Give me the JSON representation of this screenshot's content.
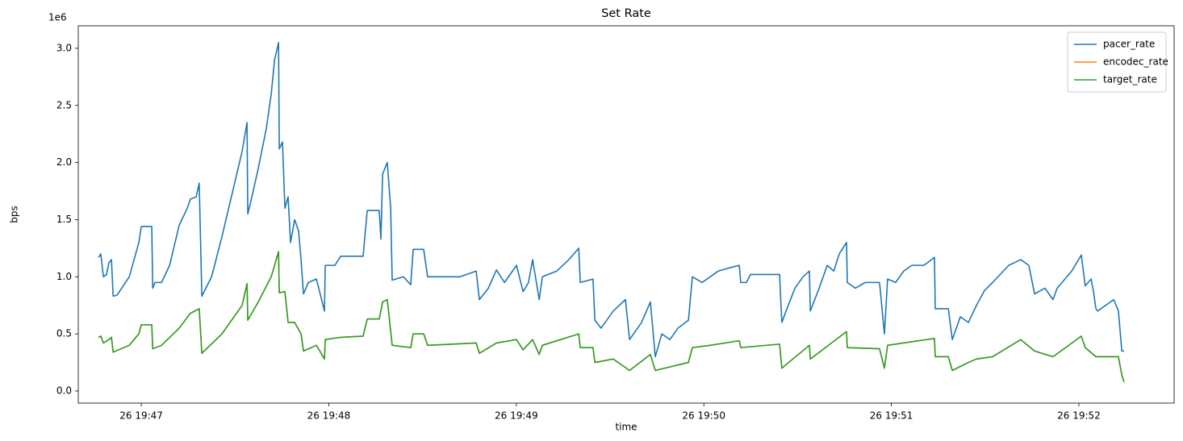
{
  "chart_data": {
    "type": "line",
    "title": "Set Rate",
    "xlabel": "time",
    "ylabel": "bps",
    "y_offset_label": "1e6",
    "legend": "upper right",
    "grid": false,
    "xlim": [
      46.664,
      52.508
    ],
    "xticks": [
      {
        "value": 47,
        "label": "26 19:47"
      },
      {
        "value": 48,
        "label": "26 19:48"
      },
      {
        "value": 49,
        "label": "26 19:49"
      },
      {
        "value": 50,
        "label": "26 19:50"
      },
      {
        "value": 51,
        "label": "26 19:51"
      },
      {
        "value": 52,
        "label": "26 19:52"
      }
    ],
    "ylim": [
      -0.106,
      3.197
    ],
    "yticks": [
      {
        "value": 0,
        "label": "0.0"
      },
      0.5,
      {
        "value": 1,
        "label": "1.0"
      },
      1.5,
      {
        "value": 2,
        "label": "2.0"
      },
      2.5,
      {
        "value": 3,
        "label": "3.0"
      }
    ],
    "series": [
      {
        "name": "pacer_rate",
        "color": "#1f77b4",
        "x": [
          46.772,
          46.784,
          46.798,
          46.815,
          46.827,
          46.841,
          46.85,
          46.871,
          46.936,
          46.987,
          47.0,
          47.056,
          47.061,
          47.073,
          47.108,
          47.151,
          47.202,
          47.245,
          47.262,
          47.293,
          47.309,
          47.323,
          47.375,
          47.43,
          47.495,
          47.538,
          47.564,
          47.568,
          47.59,
          47.624,
          47.667,
          47.693,
          47.711,
          47.732,
          47.736,
          47.753,
          47.766,
          47.783,
          47.796,
          47.818,
          47.839,
          47.852,
          47.865,
          47.891,
          47.934,
          47.977,
          47.981,
          48.033,
          48.063,
          48.183,
          48.205,
          48.269,
          48.278,
          48.287,
          48.312,
          48.33,
          48.338,
          48.398,
          48.437,
          48.45,
          48.506,
          48.527,
          48.593,
          48.7,
          48.786,
          48.803,
          48.851,
          48.894,
          48.937,
          49.001,
          49.036,
          49.065,
          49.087,
          49.122,
          49.139,
          49.216,
          49.28,
          49.333,
          49.341,
          49.409,
          49.419,
          49.452,
          49.517,
          49.582,
          49.604,
          49.668,
          49.715,
          49.741,
          49.776,
          49.819,
          49.862,
          49.918,
          49.939,
          49.991,
          50.034,
          50.077,
          50.141,
          50.189,
          50.197,
          50.227,
          50.249,
          50.404,
          50.416,
          50.443,
          50.486,
          50.529,
          50.563,
          50.568,
          50.615,
          50.658,
          50.693,
          50.722,
          50.761,
          50.765,
          50.808,
          50.861,
          50.937,
          50.963,
          50.98,
          51.023,
          51.066,
          51.109,
          51.174,
          51.23,
          51.234,
          51.304,
          51.325,
          51.368,
          51.411,
          51.454,
          51.497,
          51.54,
          51.626,
          51.69,
          51.733,
          51.764,
          51.819,
          51.862,
          51.884,
          51.962,
          52.013,
          52.034,
          52.065,
          52.077,
          52.091,
          52.1,
          52.186,
          52.211,
          52.229,
          52.241
        ],
        "values": [
          1.17,
          1.2,
          1.0,
          1.02,
          1.12,
          1.15,
          0.83,
          0.84,
          1.0,
          1.3,
          1.44,
          1.44,
          0.9,
          0.95,
          0.95,
          1.1,
          1.45,
          1.6,
          1.68,
          1.7,
          1.82,
          0.83,
          1.0,
          1.35,
          1.8,
          2.1,
          2.35,
          1.55,
          1.7,
          1.95,
          2.3,
          2.6,
          2.9,
          3.05,
          2.12,
          2.18,
          1.6,
          1.7,
          1.3,
          1.5,
          1.4,
          1.15,
          0.85,
          0.95,
          0.98,
          0.7,
          1.1,
          1.1,
          1.18,
          1.18,
          1.58,
          1.58,
          1.33,
          1.9,
          2.0,
          1.6,
          0.97,
          1.0,
          0.93,
          1.24,
          1.24,
          1.0,
          1.0,
          1.0,
          1.05,
          0.8,
          0.9,
          1.06,
          0.95,
          1.1,
          0.87,
          0.95,
          1.15,
          0.8,
          1.0,
          1.05,
          1.15,
          1.25,
          0.95,
          0.98,
          0.62,
          0.55,
          0.7,
          0.8,
          0.45,
          0.6,
          0.78,
          0.3,
          0.5,
          0.45,
          0.55,
          0.62,
          1.0,
          0.95,
          1.0,
          1.05,
          1.08,
          1.1,
          0.95,
          0.95,
          1.02,
          1.02,
          0.6,
          0.72,
          0.9,
          1.0,
          1.05,
          0.7,
          0.9,
          1.1,
          1.05,
          1.2,
          1.3,
          0.95,
          0.9,
          0.95,
          0.95,
          0.5,
          0.98,
          0.95,
          1.05,
          1.1,
          1.1,
          1.17,
          0.72,
          0.72,
          0.45,
          0.65,
          0.6,
          0.75,
          0.88,
          0.95,
          1.1,
          1.15,
          1.1,
          0.85,
          0.9,
          0.8,
          0.9,
          1.05,
          1.19,
          0.92,
          0.98,
          0.88,
          0.72,
          0.7,
          0.8,
          0.7,
          0.35,
          0.35
        ]
      },
      {
        "name": "encodec_rate",
        "color": "#ff7f0e",
        "x": [
          46.772,
          46.784,
          46.798,
          46.827,
          46.841,
          46.85,
          46.936,
          46.987,
          47.0,
          47.056,
          47.061,
          47.108,
          47.202,
          47.262,
          47.309,
          47.323,
          47.43,
          47.538,
          47.564,
          47.568,
          47.624,
          47.693,
          47.732,
          47.736,
          47.766,
          47.783,
          47.818,
          47.852,
          47.865,
          47.934,
          47.977,
          47.981,
          48.063,
          48.183,
          48.205,
          48.269,
          48.287,
          48.312,
          48.338,
          48.437,
          48.45,
          48.506,
          48.527,
          48.786,
          48.803,
          48.894,
          49.001,
          49.036,
          49.087,
          49.122,
          49.139,
          49.333,
          49.341,
          49.409,
          49.419,
          49.517,
          49.604,
          49.715,
          49.741,
          49.918,
          49.939,
          50.034,
          50.189,
          50.197,
          50.404,
          50.416,
          50.563,
          50.568,
          50.761,
          50.765,
          50.937,
          50.963,
          50.98,
          51.23,
          51.234,
          51.304,
          51.325,
          51.411,
          51.454,
          51.54,
          51.69,
          51.764,
          51.862,
          52.013,
          52.034,
          52.091,
          52.211,
          52.229,
          52.241
        ],
        "values": [
          0.47,
          0.48,
          0.42,
          0.45,
          0.47,
          0.34,
          0.4,
          0.5,
          0.58,
          0.58,
          0.37,
          0.4,
          0.55,
          0.68,
          0.72,
          0.33,
          0.5,
          0.75,
          0.94,
          0.62,
          0.78,
          1.0,
          1.22,
          0.86,
          0.87,
          0.6,
          0.6,
          0.5,
          0.35,
          0.4,
          0.28,
          0.45,
          0.47,
          0.48,
          0.63,
          0.63,
          0.78,
          0.8,
          0.4,
          0.38,
          0.5,
          0.5,
          0.4,
          0.42,
          0.33,
          0.42,
          0.45,
          0.36,
          0.45,
          0.32,
          0.4,
          0.5,
          0.38,
          0.38,
          0.25,
          0.28,
          0.18,
          0.32,
          0.18,
          0.25,
          0.38,
          0.4,
          0.44,
          0.38,
          0.41,
          0.2,
          0.4,
          0.28,
          0.52,
          0.38,
          0.37,
          0.2,
          0.4,
          0.46,
          0.3,
          0.3,
          0.18,
          0.25,
          0.28,
          0.3,
          0.45,
          0.35,
          0.3,
          0.48,
          0.38,
          0.3,
          0.3,
          0.14,
          0.08
        ]
      },
      {
        "name": "target_rate",
        "color": "#2ca02c",
        "x": [
          46.772,
          46.784,
          46.798,
          46.827,
          46.841,
          46.85,
          46.936,
          46.987,
          47.0,
          47.056,
          47.061,
          47.108,
          47.202,
          47.262,
          47.309,
          47.323,
          47.43,
          47.538,
          47.564,
          47.568,
          47.624,
          47.693,
          47.732,
          47.736,
          47.766,
          47.783,
          47.818,
          47.852,
          47.865,
          47.934,
          47.977,
          47.981,
          48.063,
          48.183,
          48.205,
          48.269,
          48.287,
          48.312,
          48.338,
          48.437,
          48.45,
          48.506,
          48.527,
          48.786,
          48.803,
          48.894,
          49.001,
          49.036,
          49.087,
          49.122,
          49.139,
          49.333,
          49.341,
          49.409,
          49.419,
          49.517,
          49.604,
          49.715,
          49.741,
          49.918,
          49.939,
          50.034,
          50.189,
          50.197,
          50.404,
          50.416,
          50.563,
          50.568,
          50.761,
          50.765,
          50.937,
          50.963,
          50.98,
          51.23,
          51.234,
          51.304,
          51.325,
          51.411,
          51.454,
          51.54,
          51.69,
          51.764,
          51.862,
          52.013,
          52.034,
          52.091,
          52.211,
          52.229,
          52.241
        ],
        "values": [
          0.47,
          0.48,
          0.42,
          0.45,
          0.47,
          0.34,
          0.4,
          0.5,
          0.58,
          0.58,
          0.37,
          0.4,
          0.55,
          0.68,
          0.72,
          0.33,
          0.5,
          0.75,
          0.94,
          0.62,
          0.78,
          1.0,
          1.22,
          0.86,
          0.87,
          0.6,
          0.6,
          0.5,
          0.35,
          0.4,
          0.28,
          0.45,
          0.47,
          0.48,
          0.63,
          0.63,
          0.78,
          0.8,
          0.4,
          0.38,
          0.5,
          0.5,
          0.4,
          0.42,
          0.33,
          0.42,
          0.45,
          0.36,
          0.45,
          0.32,
          0.4,
          0.5,
          0.38,
          0.38,
          0.25,
          0.28,
          0.18,
          0.32,
          0.18,
          0.25,
          0.38,
          0.4,
          0.44,
          0.38,
          0.41,
          0.2,
          0.4,
          0.28,
          0.52,
          0.38,
          0.37,
          0.2,
          0.4,
          0.46,
          0.3,
          0.3,
          0.18,
          0.25,
          0.28,
          0.3,
          0.45,
          0.35,
          0.3,
          0.48,
          0.38,
          0.3,
          0.3,
          0.14,
          0.08
        ]
      }
    ]
  }
}
